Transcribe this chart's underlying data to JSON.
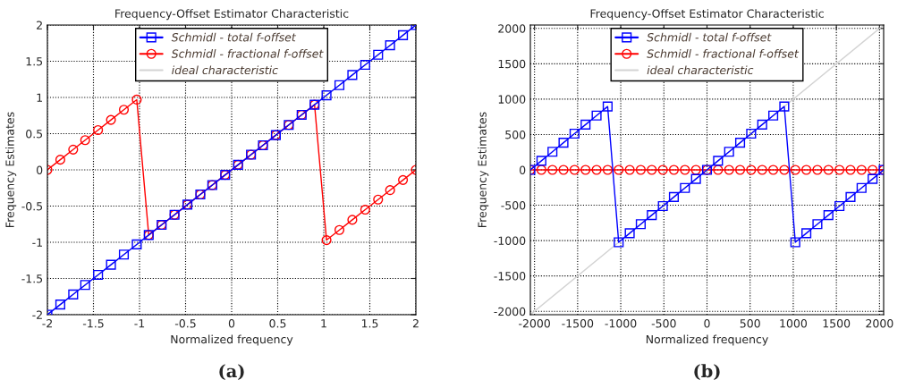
{
  "chart_data": [
    {
      "type": "line",
      "title": "Frequency-Offset Estimator Characteristic",
      "xlabel": "Normalized frequency",
      "ylabel": "Frequency Estimates",
      "xlim": [
        -2,
        2
      ],
      "ylim": [
        -2,
        2
      ],
      "xticks": [
        -2,
        -1.5,
        -1,
        -0.5,
        0,
        0.5,
        1,
        1.5,
        2
      ],
      "yticks": [
        -2,
        -1.5,
        -1,
        -0.5,
        0,
        0.5,
        1,
        1.5,
        2
      ],
      "grid": true,
      "legend": "top",
      "annotations": [
        "(a)"
      ],
      "x": [
        -2.0,
        -1.86,
        -1.72,
        -1.59,
        -1.45,
        -1.31,
        -1.17,
        -1.03,
        -0.9,
        -0.76,
        -0.62,
        -0.48,
        -0.34,
        -0.21,
        -0.07,
        0.07,
        0.21,
        0.34,
        0.48,
        0.62,
        0.76,
        0.9,
        1.03,
        1.17,
        1.31,
        1.45,
        1.59,
        1.72,
        1.86,
        2.0
      ],
      "series": [
        {
          "name": "Schmidl - total f-offset",
          "color": "#0000ff",
          "marker": "square",
          "values": [
            -2.0,
            -1.86,
            -1.72,
            -1.59,
            -1.45,
            -1.31,
            -1.17,
            -1.03,
            -0.9,
            -0.76,
            -0.62,
            -0.48,
            -0.34,
            -0.21,
            -0.07,
            0.07,
            0.21,
            0.34,
            0.48,
            0.62,
            0.76,
            0.9,
            1.03,
            1.17,
            1.31,
            1.45,
            1.59,
            1.72,
            1.86,
            2.0
          ]
        },
        {
          "name": "Schmidl - fractional f-offset",
          "color": "#ff0000",
          "marker": "circle",
          "values": [
            0.0,
            0.14,
            0.28,
            0.41,
            0.55,
            0.69,
            0.83,
            0.97,
            -0.9,
            -0.76,
            -0.62,
            -0.48,
            -0.34,
            -0.21,
            -0.07,
            0.07,
            0.21,
            0.34,
            0.48,
            0.62,
            0.76,
            0.9,
            -0.97,
            -0.83,
            -0.69,
            -0.55,
            -0.41,
            -0.28,
            -0.14,
            0.0
          ]
        },
        {
          "name": "ideal characteristic",
          "color": "#d3d3d3",
          "marker": "none",
          "x": [
            -2,
            2
          ],
          "values": [
            -2,
            2
          ]
        }
      ]
    },
    {
      "type": "line",
      "title": "Frequency-Offset Estimator Characteristic",
      "xlabel": "Normalized frequency",
      "ylabel": "Frequency Estimates",
      "xlim": [
        -2048,
        2048
      ],
      "ylim": [
        -2048,
        2048
      ],
      "xticks": [
        -2000,
        -1500,
        -1000,
        -500,
        0,
        500,
        1000,
        1500,
        2000
      ],
      "yticks": [
        -2000,
        -1500,
        -1000,
        -500,
        0,
        500,
        1000,
        1500,
        2000
      ],
      "grid": true,
      "legend": "top",
      "annotations": [
        "(b)"
      ],
      "x": [
        -2048,
        -1920,
        -1792,
        -1664,
        -1536,
        -1408,
        -1280,
        -1152,
        -1024,
        -896,
        -768,
        -640,
        -512,
        -384,
        -256,
        -128,
        0,
        128,
        256,
        384,
        512,
        640,
        768,
        896,
        1024,
        1152,
        1280,
        1408,
        1536,
        1664,
        1792,
        1920,
        2048
      ],
      "series": [
        {
          "name": "Schmidl - total f-offset",
          "color": "#0000ff",
          "marker": "square",
          "values": [
            0,
            128,
            256,
            384,
            512,
            640,
            768,
            896,
            -1024,
            -896,
            -768,
            -640,
            -512,
            -384,
            -256,
            -128,
            0,
            128,
            256,
            384,
            512,
            640,
            768,
            896,
            -1024,
            -896,
            -768,
            -640,
            -512,
            -384,
            -256,
            -128,
            0
          ]
        },
        {
          "name": "Schmidl - fractional f-offset",
          "color": "#ff0000",
          "marker": "circle",
          "values": [
            0,
            0,
            0,
            0,
            0,
            0,
            0,
            0,
            0,
            0,
            0,
            0,
            0,
            0,
            0,
            0,
            0,
            0,
            0,
            0,
            0,
            0,
            0,
            0,
            0,
            0,
            0,
            0,
            0,
            0,
            0,
            0,
            0
          ]
        },
        {
          "name": "ideal characteristic",
          "color": "#d3d3d3",
          "marker": "none",
          "x": [
            -2048,
            2048
          ],
          "values": [
            -2048,
            2048
          ]
        }
      ]
    }
  ]
}
